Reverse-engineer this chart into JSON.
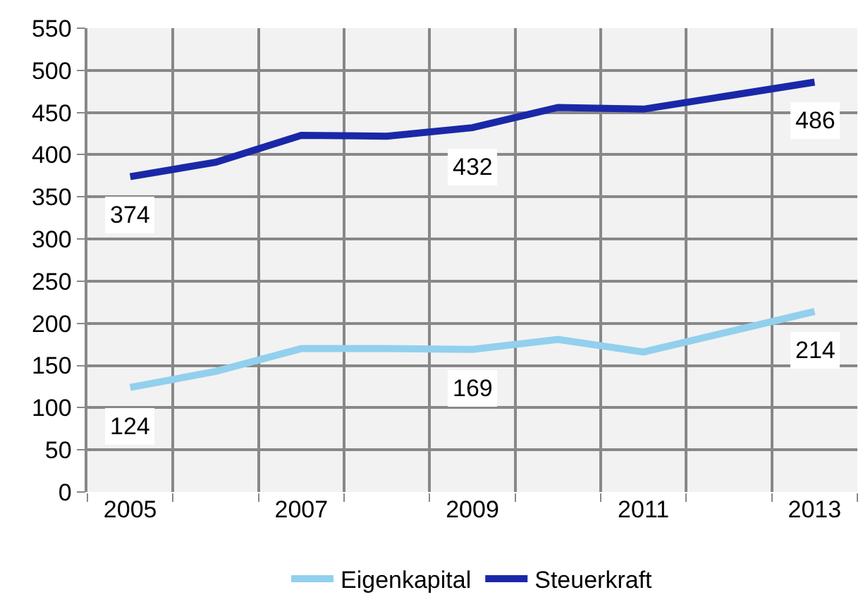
{
  "chart_data": {
    "type": "line",
    "categories": [
      "2005",
      null,
      "2007",
      null,
      "2009",
      null,
      "2011",
      null,
      "2013"
    ],
    "series": [
      {
        "name": "Eigenkapital",
        "color": "#92d0ee",
        "values": [
          124,
          143,
          170,
          170,
          169,
          181,
          166,
          190,
          214
        ],
        "value_labels": [
          "124",
          null,
          null,
          null,
          "169",
          null,
          null,
          null,
          "214"
        ]
      },
      {
        "name": "Steuerkraft",
        "color": "#1a28a8",
        "values": [
          374,
          391,
          423,
          422,
          432,
          456,
          454,
          470,
          486
        ],
        "value_labels": [
          "374",
          null,
          null,
          null,
          "432",
          null,
          null,
          null,
          "486"
        ]
      }
    ],
    "ylim": [
      0,
      550
    ],
    "yticks": [
      0,
      50,
      100,
      150,
      200,
      250,
      300,
      350,
      400,
      450,
      500,
      550
    ],
    "grid": true,
    "legend": "bottom",
    "marker": "none",
    "line_style": "solid"
  }
}
